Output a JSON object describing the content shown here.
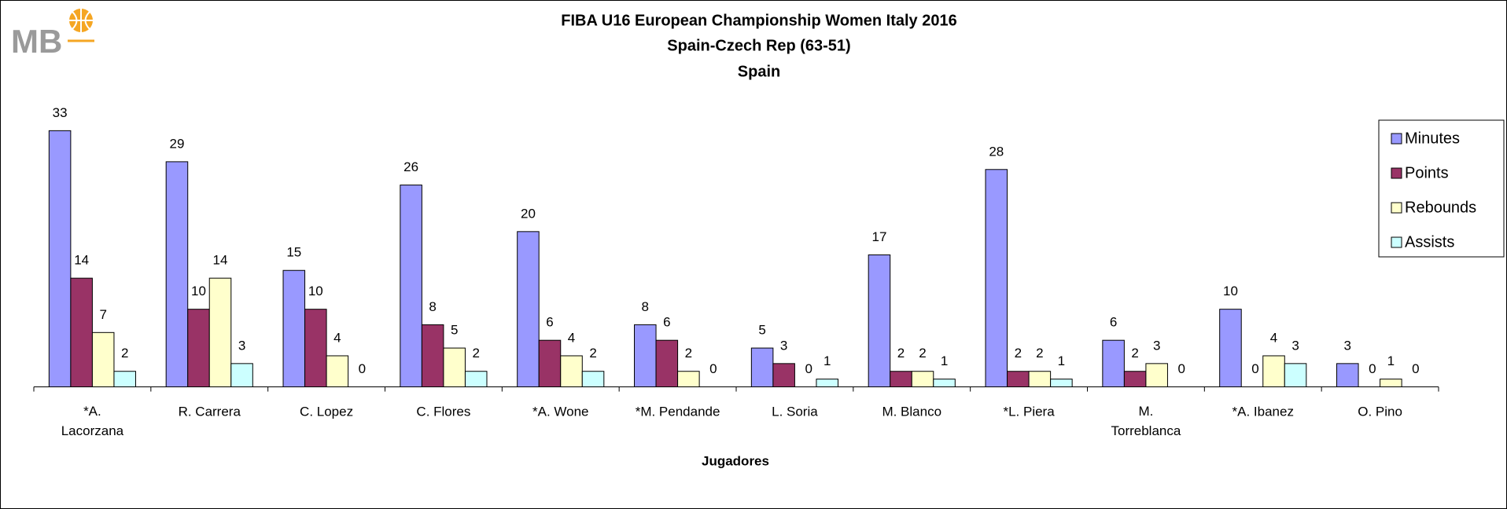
{
  "logo": "MB",
  "chart_data": {
    "type": "bar",
    "title": "FIBA U16 European Championship Women Italy 2016",
    "subtitle": "Spain-Czech Rep (63-51)",
    "team": "Spain",
    "x_label": "Jugadores",
    "categories": [
      "*A. Lacorzana",
      "R. Carrera",
      "C. Lopez",
      "C. Flores",
      "*A. Wone",
      "*M. Pendande",
      "L. Soria",
      "M. Blanco",
      "*L. Piera",
      "M. Torreblanca",
      "*A. Ibanez",
      "O. Pino"
    ],
    "series": [
      {
        "name": "Minutes",
        "color": "#9999ff",
        "values": [
          33,
          29,
          15,
          26,
          20,
          8,
          5,
          17,
          28,
          6,
          10,
          3
        ]
      },
      {
        "name": "Points",
        "color": "#993366",
        "values": [
          14,
          10,
          10,
          8,
          6,
          6,
          3,
          2,
          2,
          2,
          0,
          0
        ]
      },
      {
        "name": "Rebounds",
        "color": "#ffffcc",
        "values": [
          7,
          14,
          4,
          5,
          4,
          2,
          0,
          2,
          2,
          3,
          4,
          1
        ]
      },
      {
        "name": "Assists",
        "color": "#ccffff",
        "values": [
          2,
          3,
          0,
          2,
          2,
          0,
          1,
          1,
          1,
          0,
          3,
          0
        ]
      }
    ],
    "ylim": [
      0,
      35
    ],
    "legend": "right"
  }
}
